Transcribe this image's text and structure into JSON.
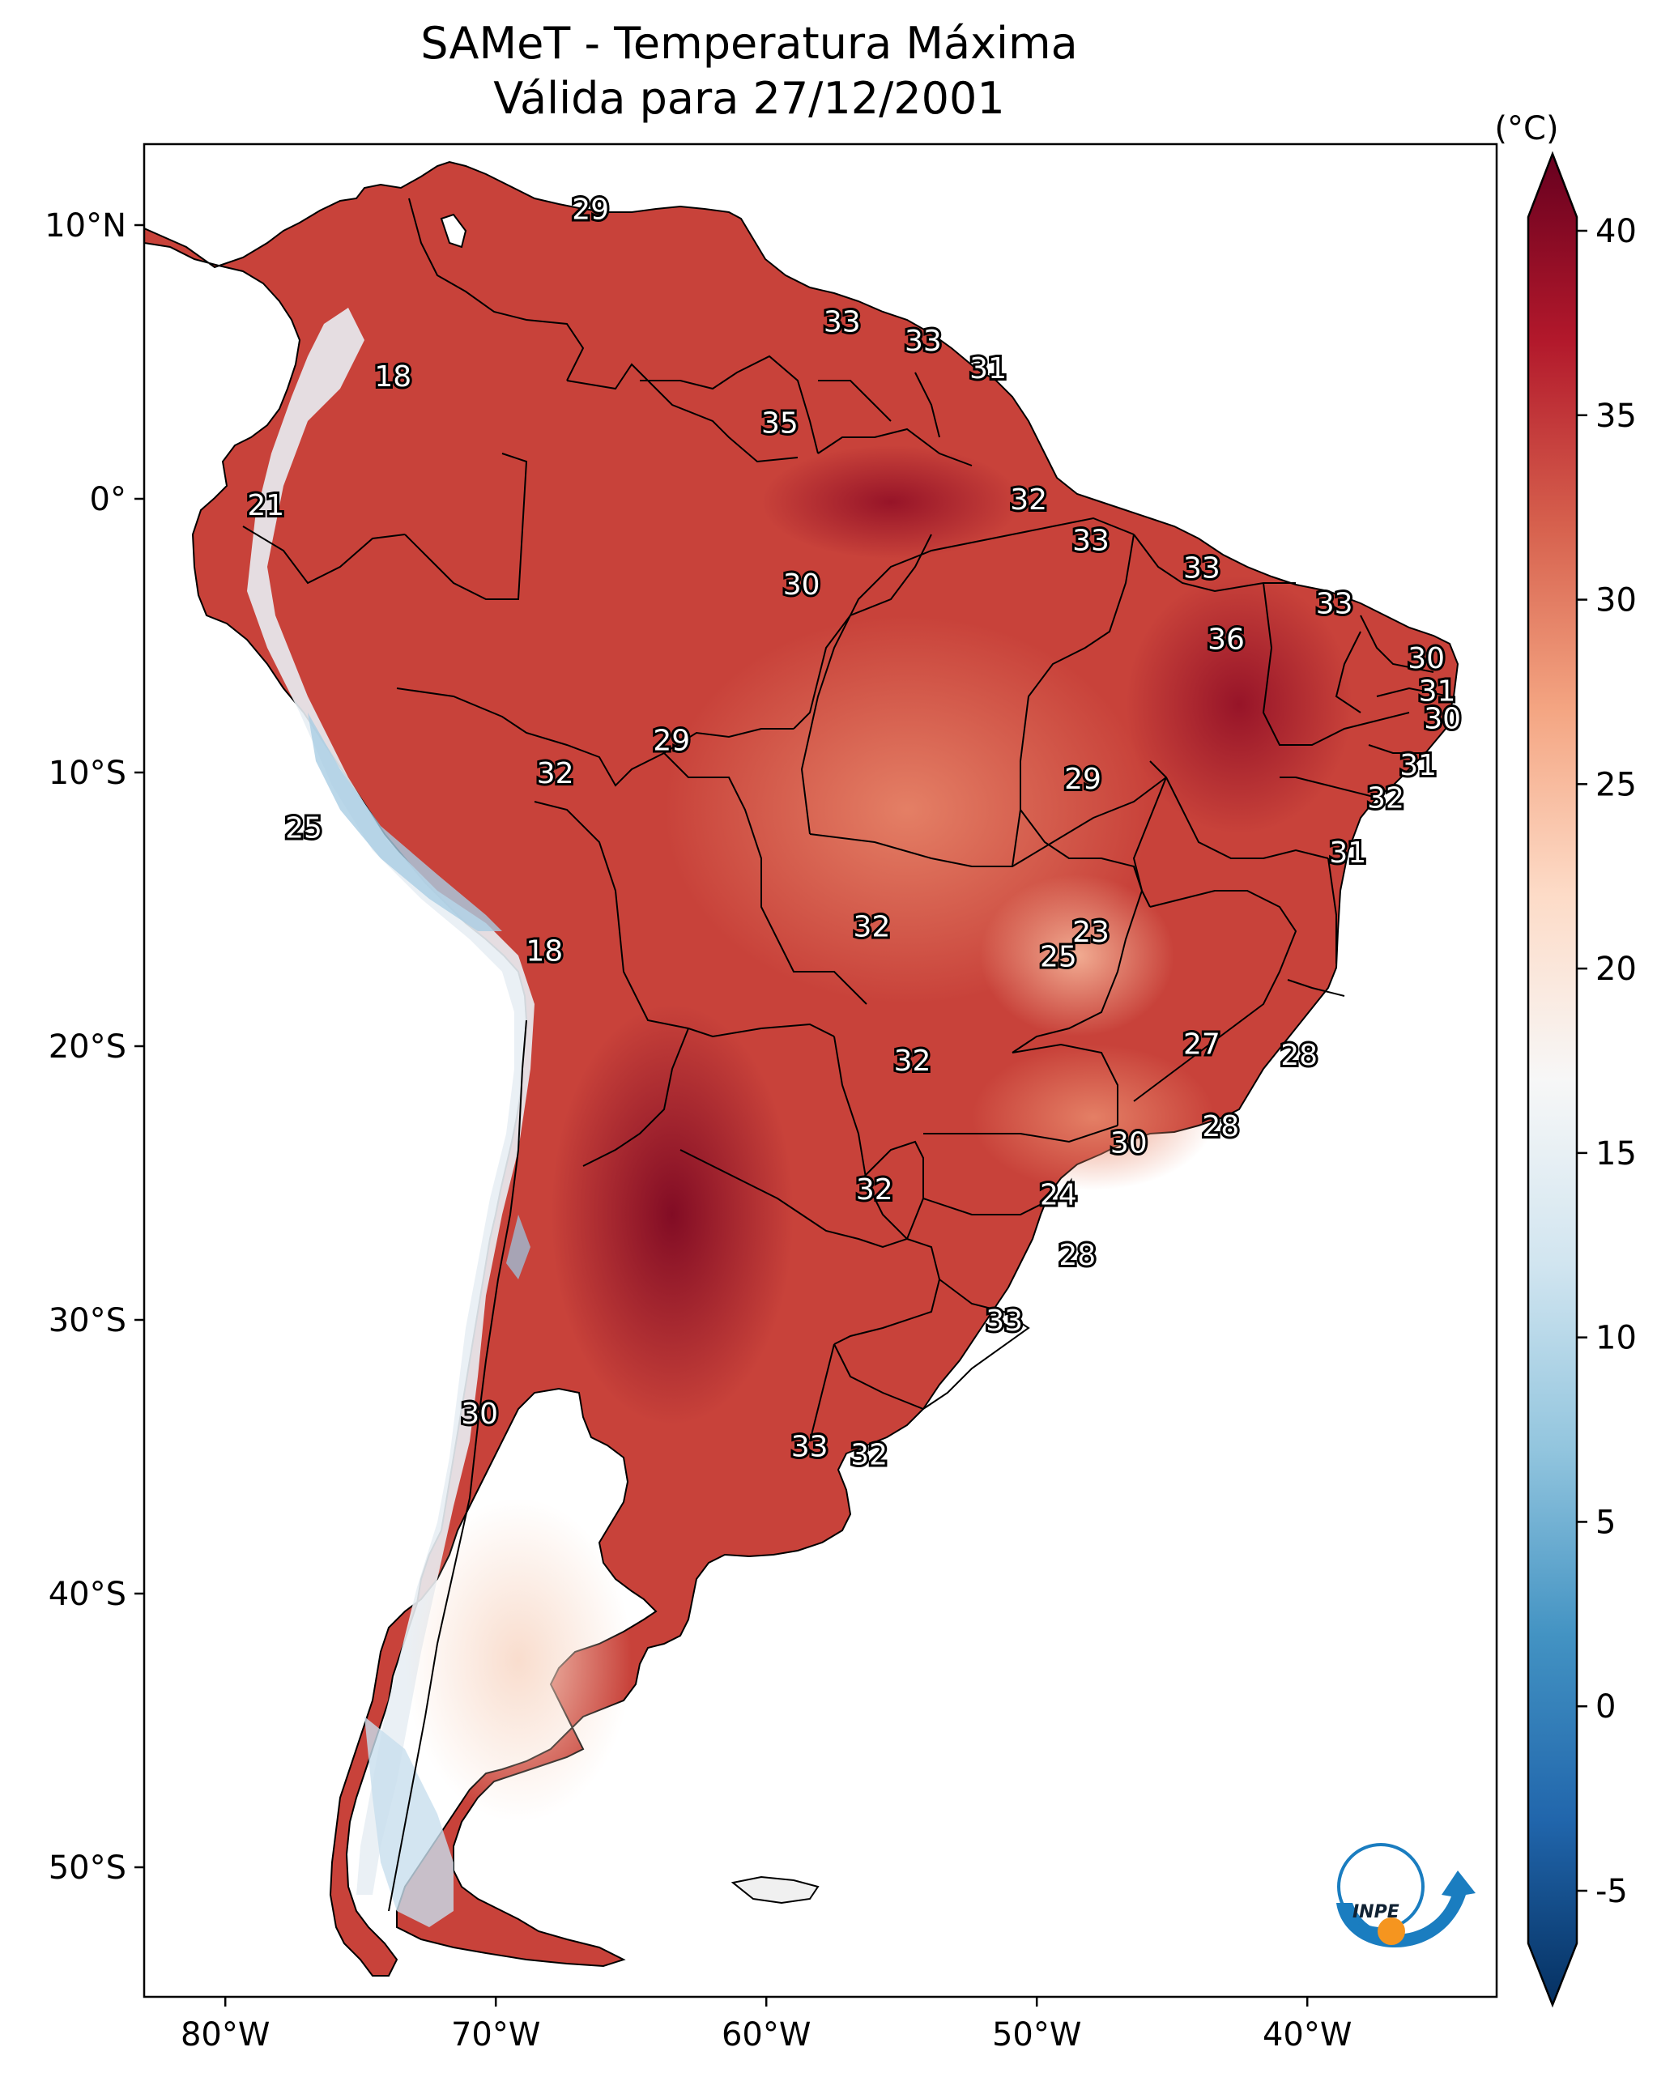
{
  "title": {
    "line1": "SAMeT - Temperatura Máxima",
    "line2": "Válida para 27/12/2001"
  },
  "colorbar": {
    "unit": "(°C)",
    "ticks": [
      "40",
      "35",
      "30",
      "25",
      "20",
      "15",
      "10",
      "5",
      "0",
      "-5"
    ],
    "colors": [
      "#67001f",
      "#b2182b",
      "#d6604d",
      "#f4a582",
      "#fddbc7",
      "#f7f7f7",
      "#d1e5f0",
      "#92c5de",
      "#4393c3",
      "#2166ac",
      "#053061"
    ]
  },
  "axes": {
    "lat_labels": [
      "10°N",
      "0°",
      "10°S",
      "20°S",
      "30°S",
      "40°S",
      "50°S"
    ],
    "lon_labels": [
      "80°W",
      "70°W",
      "60°W",
      "50°W",
      "40°W"
    ]
  },
  "logo": {
    "text": "INPE"
  },
  "stations": [
    {
      "lon": -66.5,
      "lat": 10.6,
      "value": "29"
    },
    {
      "lon": -57.2,
      "lat": 6.5,
      "value": "33"
    },
    {
      "lon": -54.2,
      "lat": 5.8,
      "value": "33"
    },
    {
      "lon": -51.8,
      "lat": 4.8,
      "value": "31"
    },
    {
      "lon": -73.8,
      "lat": 4.5,
      "value": "18"
    },
    {
      "lon": -59.5,
      "lat": 2.8,
      "value": "35"
    },
    {
      "lon": -78.5,
      "lat": -0.2,
      "value": "21"
    },
    {
      "lon": -50.3,
      "lat": 0.0,
      "value": "32"
    },
    {
      "lon": -48.0,
      "lat": -1.5,
      "value": "33"
    },
    {
      "lon": -43.9,
      "lat": -2.5,
      "value": "33"
    },
    {
      "lon": -39.0,
      "lat": -3.8,
      "value": "33"
    },
    {
      "lon": -58.7,
      "lat": -3.1,
      "value": "30"
    },
    {
      "lon": -43.0,
      "lat": -5.1,
      "value": "36"
    },
    {
      "lon": -35.6,
      "lat": -5.8,
      "value": "30"
    },
    {
      "lon": -35.2,
      "lat": -7.0,
      "value": "31"
    },
    {
      "lon": -35.0,
      "lat": -8.0,
      "value": "30"
    },
    {
      "lon": -63.5,
      "lat": -8.8,
      "value": "29"
    },
    {
      "lon": -35.9,
      "lat": -9.7,
      "value": "31"
    },
    {
      "lon": -67.8,
      "lat": -10.0,
      "value": "32"
    },
    {
      "lon": -48.3,
      "lat": -10.2,
      "value": "29"
    },
    {
      "lon": -37.1,
      "lat": -10.9,
      "value": "32"
    },
    {
      "lon": -77.1,
      "lat": -12.0,
      "value": "25"
    },
    {
      "lon": -38.5,
      "lat": -12.9,
      "value": "31"
    },
    {
      "lon": -48.0,
      "lat": -15.8,
      "value": "23"
    },
    {
      "lon": -56.1,
      "lat": -15.6,
      "value": "32"
    },
    {
      "lon": -49.2,
      "lat": -16.7,
      "value": "25"
    },
    {
      "lon": -68.2,
      "lat": -16.5,
      "value": "18"
    },
    {
      "lon": -43.9,
      "lat": -19.9,
      "value": "27"
    },
    {
      "lon": -54.6,
      "lat": -20.5,
      "value": "32"
    },
    {
      "lon": -40.3,
      "lat": -20.3,
      "value": "28"
    },
    {
      "lon": -43.2,
      "lat": -22.9,
      "value": "28"
    },
    {
      "lon": -46.6,
      "lat": -23.5,
      "value": "30"
    },
    {
      "lon": -56.0,
      "lat": -25.2,
      "value": "32"
    },
    {
      "lon": -49.2,
      "lat": -25.4,
      "value": "24"
    },
    {
      "lon": -48.5,
      "lat": -27.6,
      "value": "28"
    },
    {
      "lon": -51.2,
      "lat": -30.0,
      "value": "33"
    },
    {
      "lon": -70.6,
      "lat": -33.4,
      "value": "30"
    },
    {
      "lon": -58.4,
      "lat": -34.6,
      "value": "33"
    },
    {
      "lon": -56.2,
      "lat": -34.9,
      "value": "32"
    }
  ]
}
